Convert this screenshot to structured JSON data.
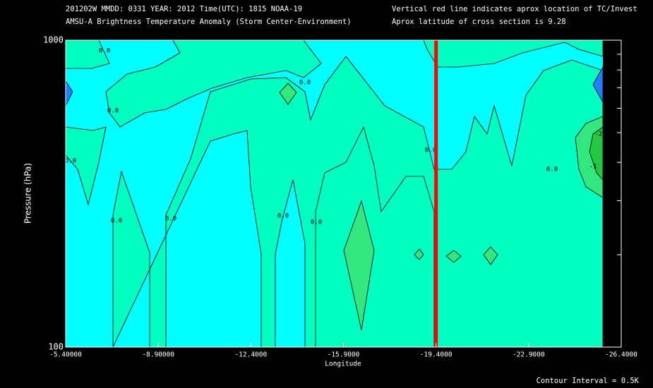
{
  "chart_data": {
    "type": "contour",
    "title": "201202W  MMDD: 0331 YEAR: 2012 Time(UTC): 1815 NOAA-19",
    "subtitle": "AMSU-A Brightness Temperature Anomaly (Storm Center-Environment)",
    "annotations": [
      "Vertical red line indicates aprox location of TC/Invest",
      "Aprox latitude of cross section is 9.28"
    ],
    "footnote": "Contour Interval = 0.5K",
    "x_label": "Longitude",
    "y_label": "Pressure (hPa)",
    "xlim": [
      -5.4,
      -26.4
    ],
    "xticks": [
      {
        "value": -5.4,
        "label": "-5.40000"
      },
      {
        "value": -8.9,
        "label": "-8.90000"
      },
      {
        "value": -12.4,
        "label": "-12.4000"
      },
      {
        "value": -15.9,
        "label": "-15.9000"
      },
      {
        "value": -19.4,
        "label": "-19.4000"
      },
      {
        "value": -22.9,
        "label": "-22.9000"
      },
      {
        "value": -26.4,
        "label": "-26.4000"
      }
    ],
    "ylim": [
      100,
      1000
    ],
    "yticks": [
      100,
      1000
    ],
    "y_minor_ticks": [
      200,
      300,
      400,
      500,
      600,
      700,
      800,
      900
    ],
    "log_y": true,
    "tc_line_x": -19.4,
    "tc_line_color": "#ff0000",
    "contour_labels": [
      "0.0",
      "0.0",
      "0.0",
      "0.0",
      "0.0",
      "0.0",
      "0.0",
      "0.0",
      "0.0",
      "0.0",
      "-1",
      "-2"
    ]
  }
}
